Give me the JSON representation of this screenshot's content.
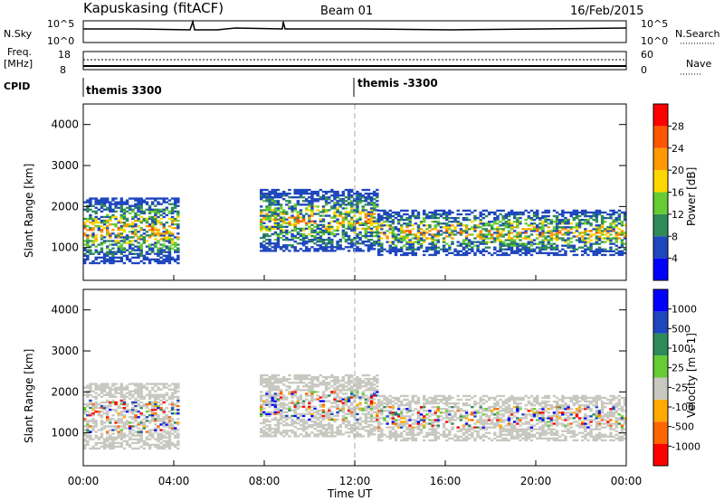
{
  "header": {
    "title": "Kapuskasing (fitACF)",
    "beam": "Beam 01",
    "date": "16/Feb/2015"
  },
  "top_panel": {
    "left_label": "N.Sky",
    "left_ticks": [
      "10^5",
      "10^0"
    ],
    "right_label": "N.Search",
    "right_ticks": [
      "10^5",
      "10^0"
    ]
  },
  "freq_panel": {
    "left_label_1": "Freq.",
    "left_label_2": "[MHz]",
    "left_ticks": [
      "18",
      "8"
    ],
    "right_label": "Nave",
    "right_ticks": [
      "60",
      "0"
    ]
  },
  "cpid_panel": {
    "label": "CPID",
    "segments": [
      "themis 3300",
      "themis -3300"
    ]
  },
  "colors": {
    "power_scale": [
      "#0000ff",
      "#1e46be",
      "#2e8b57",
      "#66cc33",
      "#ffd700",
      "#ff9900",
      "#ff5500",
      "#ff0000"
    ],
    "velocity_scale": [
      "#ff0000",
      "#ff6600",
      "#ffaa00",
      "#c8c8c0",
      "#66cc33",
      "#2e8b57",
      "#1e46be",
      "#0000ff"
    ],
    "ground_scatter": "#c8c8c0"
  },
  "chart_data": [
    {
      "type": "heatmap",
      "name": "power",
      "ylabel": "Slant Range [km]",
      "yticks": [
        1000,
        2000,
        3000,
        4000
      ],
      "ylim": [
        200,
        4500
      ],
      "xlim": [
        0,
        24
      ],
      "colorbar_label": "Power [dB]",
      "colorbar_ticks": [
        "28",
        "24",
        "20",
        "16",
        "12",
        "8",
        "4"
      ],
      "scatter_bands": [
        {
          "t0": 0.0,
          "t1": 4.2,
          "r0": 600,
          "r1": 2200
        },
        {
          "t0": 7.8,
          "t1": 13.0,
          "r0": 900,
          "r1": 2400
        },
        {
          "t0": 13.0,
          "t1": 24.0,
          "r0": 800,
          "r1": 1900
        }
      ]
    },
    {
      "type": "heatmap",
      "name": "velocity",
      "ylabel": "Slant Range [km]",
      "yticks": [
        1000,
        2000,
        3000,
        4000
      ],
      "ylim": [
        200,
        4500
      ],
      "xlim": [
        0,
        24
      ],
      "colorbar_label": "Velocity [m s-1]",
      "colorbar_ticks": [
        "1000",
        "500",
        "100",
        "25",
        "-25",
        "-100",
        "-500",
        "-1000"
      ]
    }
  ],
  "xaxis": {
    "ticks": [
      "00:00",
      "04:00",
      "08:00",
      "12:00",
      "16:00",
      "20:00",
      "00:00"
    ],
    "label": "Time UT"
  }
}
